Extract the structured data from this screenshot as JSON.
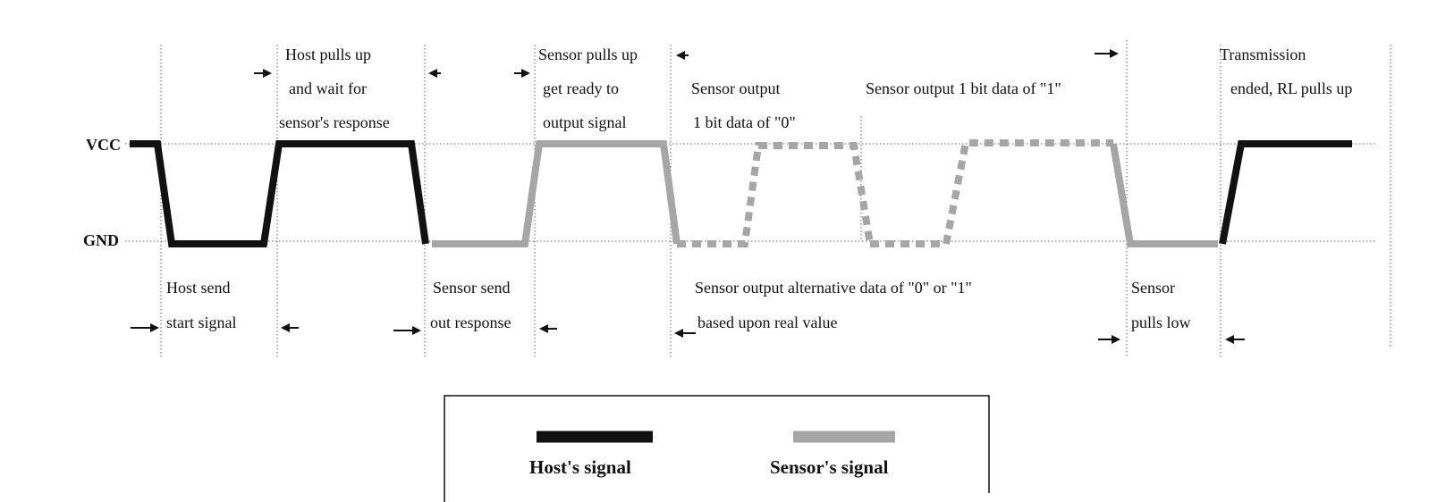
{
  "rails": {
    "vcc": "VCC",
    "gnd": "GND"
  },
  "top_labels": {
    "host_pulls_up": [
      "Host pulls up",
      "and wait for",
      "sensor's response"
    ],
    "sensor_pulls_up": [
      "Sensor pulls up",
      "get ready to",
      "output signal"
    ],
    "sensor_output_0": [
      "Sensor output",
      "1 bit data of \"0\""
    ],
    "sensor_output_1": [
      "Sensor output 1 bit data of \"1\""
    ],
    "transmission_ended": [
      "Transmission",
      "ended, RL pulls up"
    ]
  },
  "bottom_labels": {
    "host_send": [
      "Host send",
      "start signal"
    ],
    "sensor_send": [
      "Sensor send",
      "out response"
    ],
    "sensor_alternative": [
      "Sensor output alternative data of \"0\" or \"1\"",
      "based upon real value"
    ],
    "sensor_pulls_low": [
      "Sensor",
      "pulls low"
    ]
  },
  "legend": {
    "host": "Host's signal",
    "sensor": "Sensor's signal"
  },
  "colors": {
    "host": "#111111",
    "sensor": "#a6a6a6",
    "guide": "#666666"
  }
}
